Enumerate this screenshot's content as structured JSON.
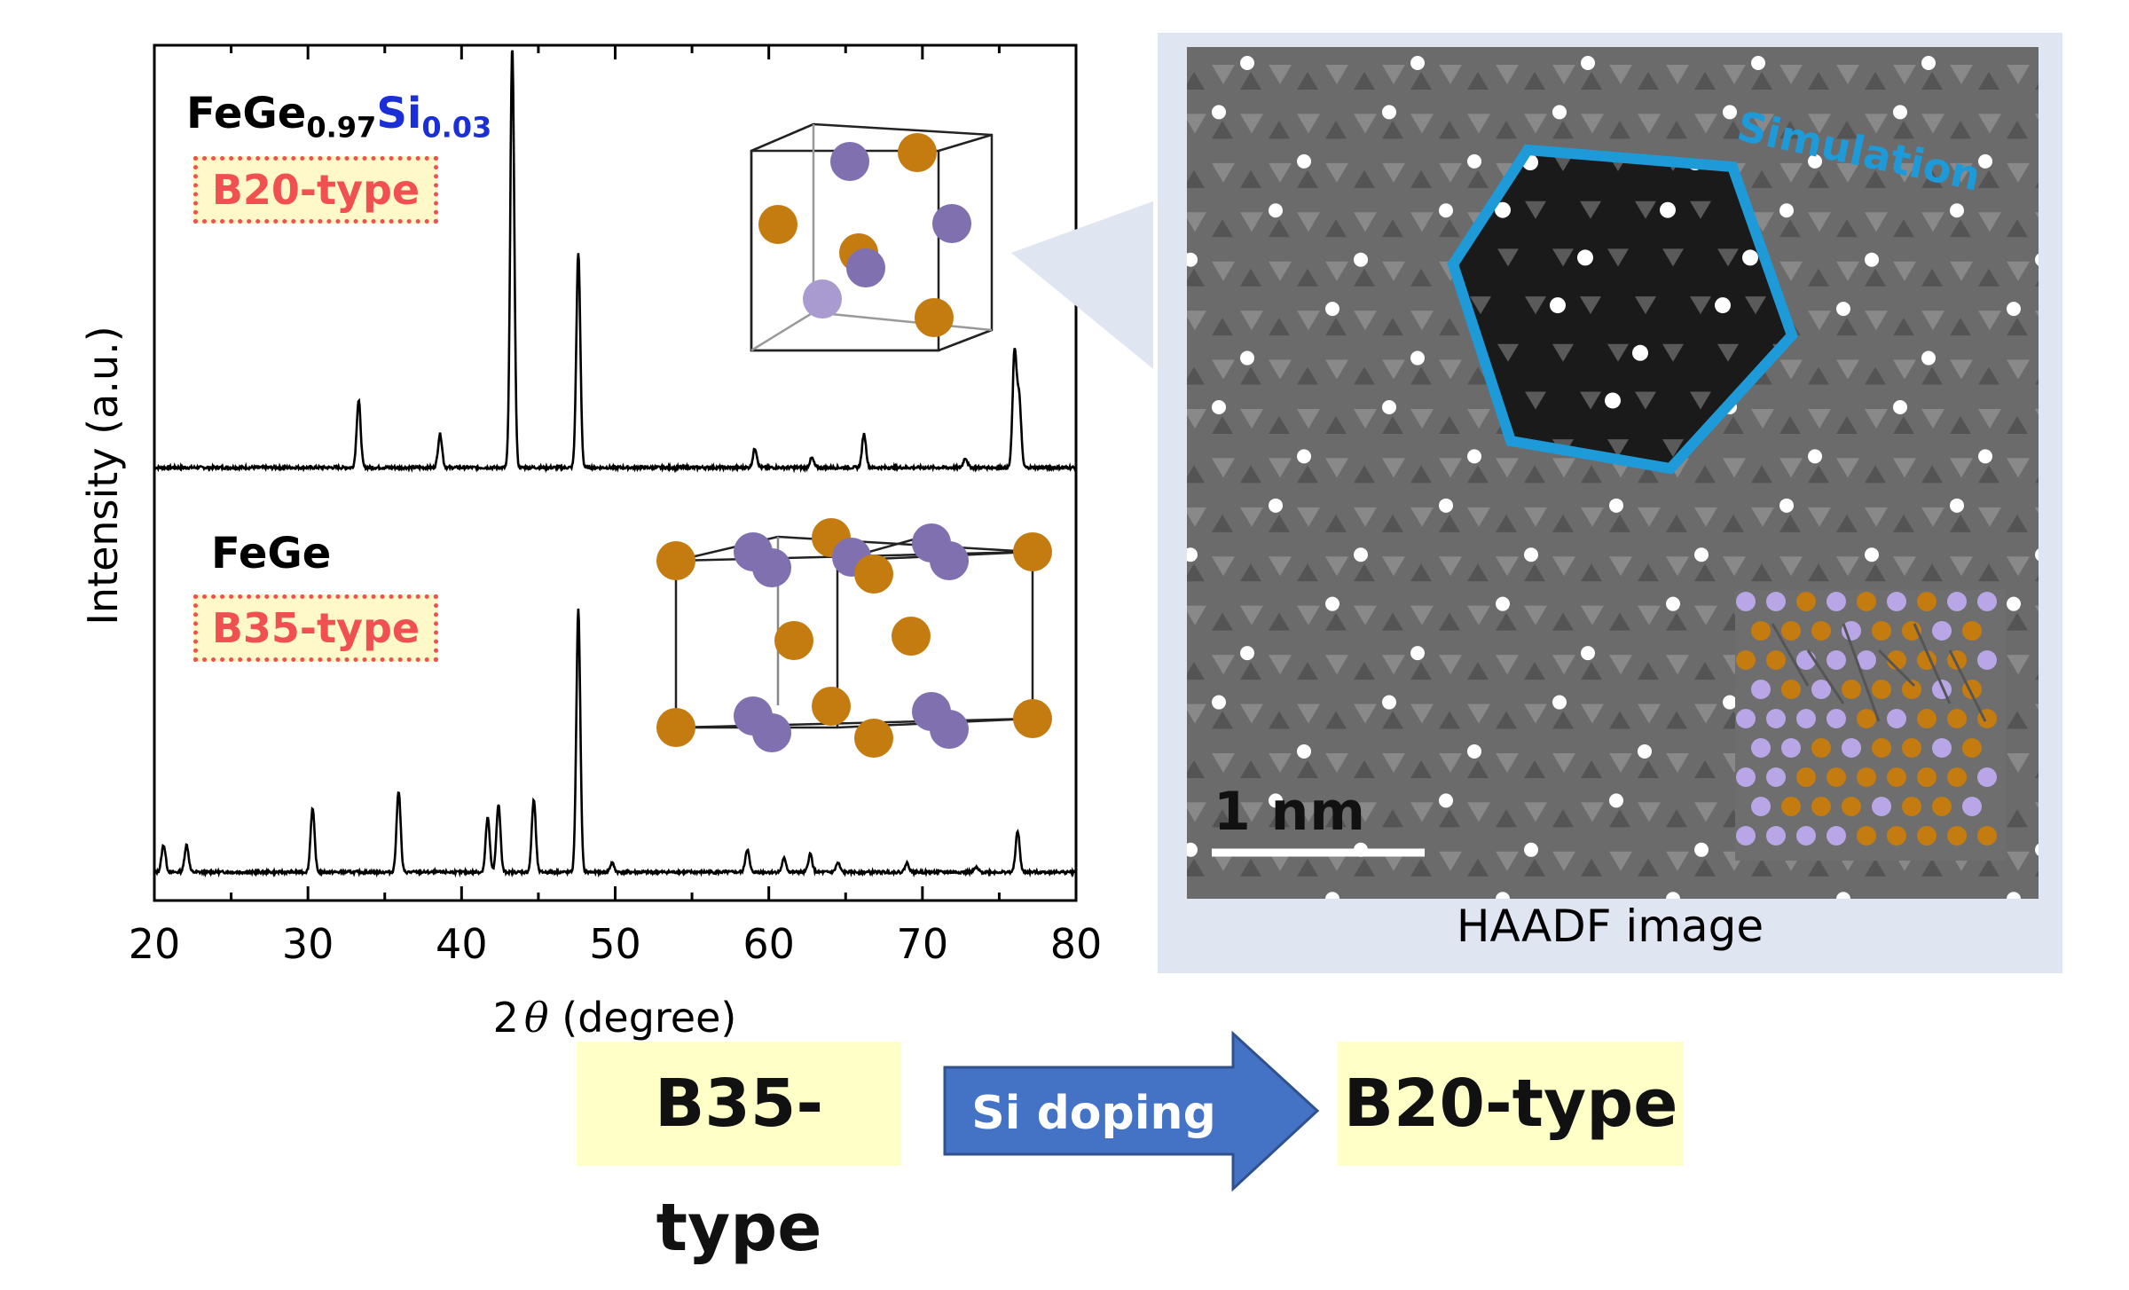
{
  "figure": {
    "top_label": {
      "base": "FeGe",
      "sub1": "0.97",
      "si": "Si",
      "sub2": "0.03"
    },
    "top_type": "B20-type",
    "bottom_label": "FeGe",
    "bottom_type": "B35-type",
    "haadf_caption": "HAADF image",
    "simulation_label": "Simulation",
    "scale_bar": "1 nm",
    "bottom_flow": {
      "from": "B35-type",
      "arrow": "Si doping",
      "to": "B20-type"
    }
  },
  "chart_data": {
    "type": "line",
    "xlabel_prefix": "2",
    "xlabel_theta": "θ",
    "xlabel_suffix": " (degree)",
    "ylabel": "Intensity (a.u.)",
    "xlim": [
      20,
      80
    ],
    "xticks": [
      20,
      30,
      40,
      50,
      60,
      70,
      80
    ],
    "y_ticks_shown": false,
    "series": [
      {
        "name": "FeGe0.97Si0.03",
        "peaks": [
          {
            "x": 33.3,
            "h": 0.14
          },
          {
            "x": 38.6,
            "h": 0.07
          },
          {
            "x": 43.3,
            "h": 0.88
          },
          {
            "x": 47.6,
            "h": 0.45
          },
          {
            "x": 59.1,
            "h": 0.04
          },
          {
            "x": 62.8,
            "h": 0.02
          },
          {
            "x": 66.2,
            "h": 0.07
          },
          {
            "x": 72.8,
            "h": 0.02
          },
          {
            "x": 76.0,
            "h": 0.24
          },
          {
            "x": 76.3,
            "h": 0.14
          }
        ]
      },
      {
        "name": "FeGe",
        "peaks": [
          {
            "x": 20.6,
            "h": 0.06
          },
          {
            "x": 22.1,
            "h": 0.06
          },
          {
            "x": 30.3,
            "h": 0.14
          },
          {
            "x": 35.9,
            "h": 0.18
          },
          {
            "x": 41.7,
            "h": 0.12
          },
          {
            "x": 42.4,
            "h": 0.15
          },
          {
            "x": 44.7,
            "h": 0.16
          },
          {
            "x": 47.6,
            "h": 0.58
          },
          {
            "x": 49.8,
            "h": 0.02
          },
          {
            "x": 58.6,
            "h": 0.05
          },
          {
            "x": 61.0,
            "h": 0.03
          },
          {
            "x": 62.7,
            "h": 0.04
          },
          {
            "x": 64.5,
            "h": 0.02
          },
          {
            "x": 69.0,
            "h": 0.02
          },
          {
            "x": 73.5,
            "h": 0.01
          },
          {
            "x": 76.2,
            "h": 0.09
          }
        ]
      }
    ]
  },
  "colors": {
    "fe_atom": "#c47c10",
    "ge_atom": "#8070b0",
    "type_label": "#f05050",
    "sim_border": "#1e9ad8",
    "arrow": "#4472c4",
    "si_text": "#1a2fd6"
  }
}
